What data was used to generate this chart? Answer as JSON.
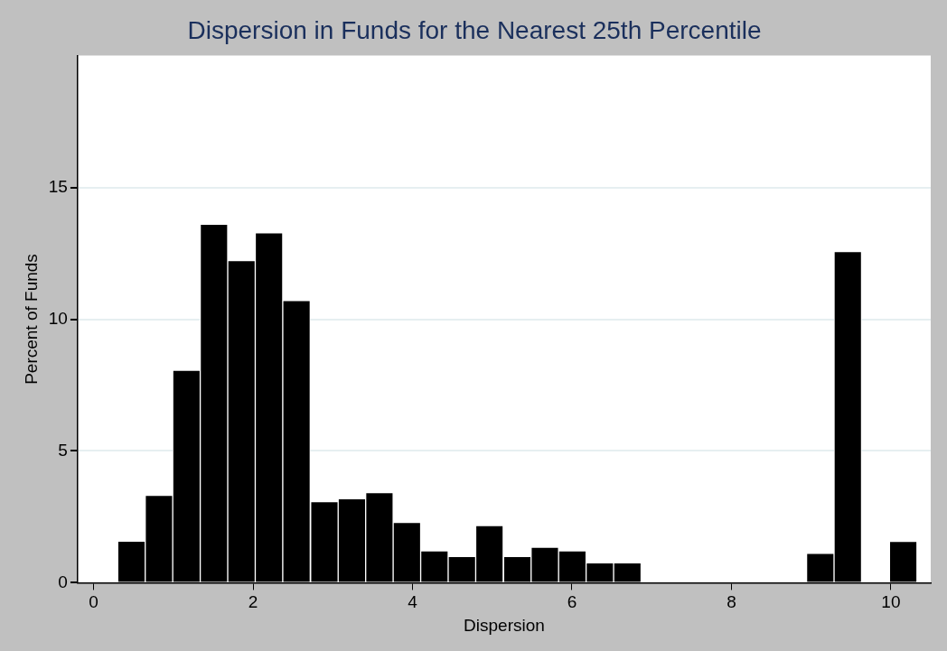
{
  "chart_data": {
    "type": "histogram",
    "title": "Dispersion in Funds for the Nearest 25th Percentile",
    "xlabel": "Dispersion",
    "ylabel": "Percent of Funds",
    "bins": [
      0.3,
      0.65,
      0.99,
      1.34,
      1.68,
      2.03,
      2.37,
      2.72,
      3.07,
      3.41,
      3.76,
      4.1,
      4.45,
      4.79,
      5.14,
      5.49,
      5.83,
      6.18,
      6.52,
      6.87,
      7.21,
      7.56,
      7.91,
      8.25,
      8.6,
      8.94,
      9.29,
      9.63,
      9.98,
      10.33
    ],
    "values": [
      1.58,
      3.32,
      8.06,
      13.6,
      12.22,
      13.28,
      10.71,
      3.08,
      3.19,
      3.42,
      2.29,
      1.21,
      1.0,
      2.17,
      1.0,
      1.35,
      1.21,
      0.76,
      0.76,
      0,
      0,
      0,
      0,
      0,
      0,
      1.12,
      12.57,
      0,
      1.57
    ],
    "color": "#000000",
    "xlim": [
      -0.2,
      10.5
    ],
    "xticks": [
      0,
      2,
      4,
      6,
      8,
      10
    ],
    "ylim": [
      0,
      20
    ],
    "yticks": [
      0,
      5,
      10,
      15
    ],
    "grid": "y",
    "legend": false
  }
}
